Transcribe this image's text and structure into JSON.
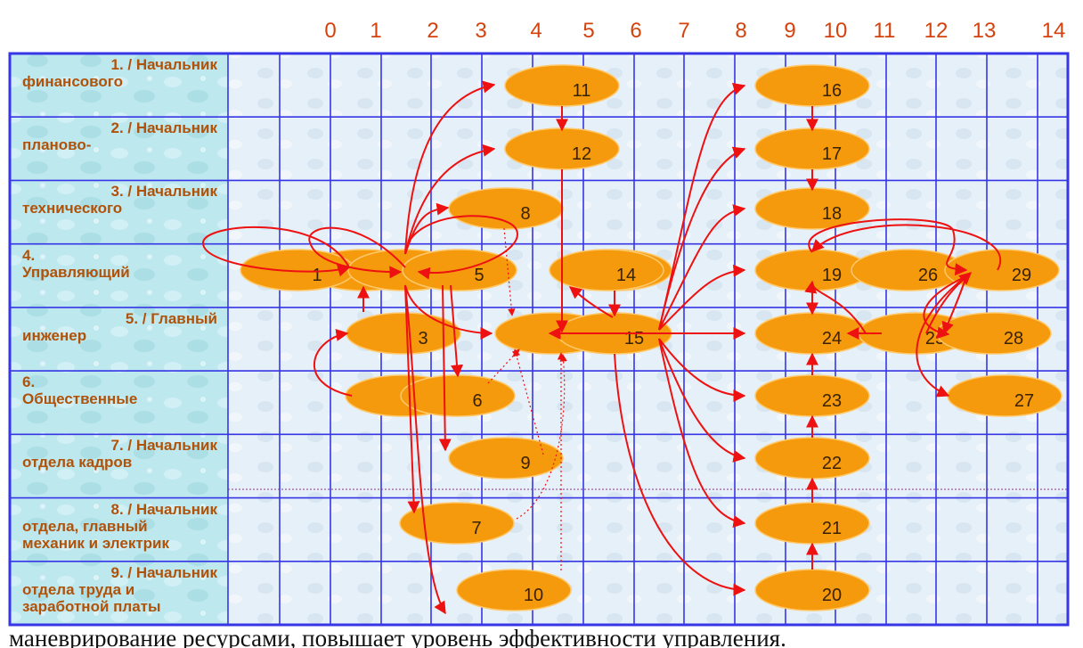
{
  "diagram": {
    "column_numbers": [
      "0",
      "1",
      "2",
      "3",
      "4",
      "5",
      "6",
      "7",
      "8",
      "9",
      "10",
      "11",
      "12",
      "13",
      "14"
    ],
    "row_labels": [
      {
        "num": "1. /",
        "line1": "Начальник",
        "line2": "финансового"
      },
      {
        "num": "2. /",
        "line1": "Начальник",
        "line2": "планово-"
      },
      {
        "num": "3. /",
        "line1": "Начальник",
        "line2": "технического"
      },
      {
        "num": "4.",
        "line1": "",
        "line2": "Управляющий"
      },
      {
        "num": "5. /",
        "line1": "Главный",
        "line2": "инженер"
      },
      {
        "num": "6.",
        "line1": "",
        "line2": "Общественные"
      },
      {
        "num": "7. /",
        "line1": "Начальник",
        "line2": "отдела кадров"
      },
      {
        "num": "8. /",
        "line1": "Начальник",
        "line2": "отдела, главный",
        "line3": "механик и электрик"
      },
      {
        "num": "9. /",
        "line1": "Начальник",
        "line2": "отдела труда и",
        "line3": "заработной платы"
      }
    ],
    "nodes": [
      {
        "id": "1",
        "label": "1"
      },
      {
        "id": "2",
        "label": ""
      },
      {
        "id": "3",
        "label": "3"
      },
      {
        "id": "4",
        "label": ""
      },
      {
        "id": "5",
        "label": "5"
      },
      {
        "id": "6",
        "label": "6"
      },
      {
        "id": "7",
        "label": "7"
      },
      {
        "id": "8",
        "label": "8"
      },
      {
        "id": "9",
        "label": "9"
      },
      {
        "id": "10",
        "label": "10"
      },
      {
        "id": "11",
        "label": "11"
      },
      {
        "id": "12",
        "label": "12"
      },
      {
        "id": "13",
        "label": ""
      },
      {
        "id": "14",
        "label": "14"
      },
      {
        "id": "15",
        "label": "15"
      },
      {
        "id": "16",
        "label": "16"
      },
      {
        "id": "17",
        "label": "17"
      },
      {
        "id": "18",
        "label": "18"
      },
      {
        "id": "19",
        "label": "19"
      },
      {
        "id": "20",
        "label": "20"
      },
      {
        "id": "21",
        "label": "21"
      },
      {
        "id": "22",
        "label": "22"
      },
      {
        "id": "23",
        "label": "23"
      },
      {
        "id": "24",
        "label": "24"
      },
      {
        "id": "25",
        "label": "25"
      },
      {
        "id": "26",
        "label": "26"
      },
      {
        "id": "27",
        "label": "27"
      },
      {
        "id": "28",
        "label": "28"
      },
      {
        "id": "29",
        "label": "29"
      }
    ],
    "colors": {
      "grid_line": "#3636e6",
      "node_fill": "#f59a0c",
      "node_stroke": "#ffc86a",
      "arrow": "#ee1111",
      "label_text": "#b0520a",
      "column_number": "#d4420e",
      "label_bg": "#b8e6ec"
    }
  },
  "footer_text": "маневрирование ресурсами, повышает уровень эффективности управления."
}
